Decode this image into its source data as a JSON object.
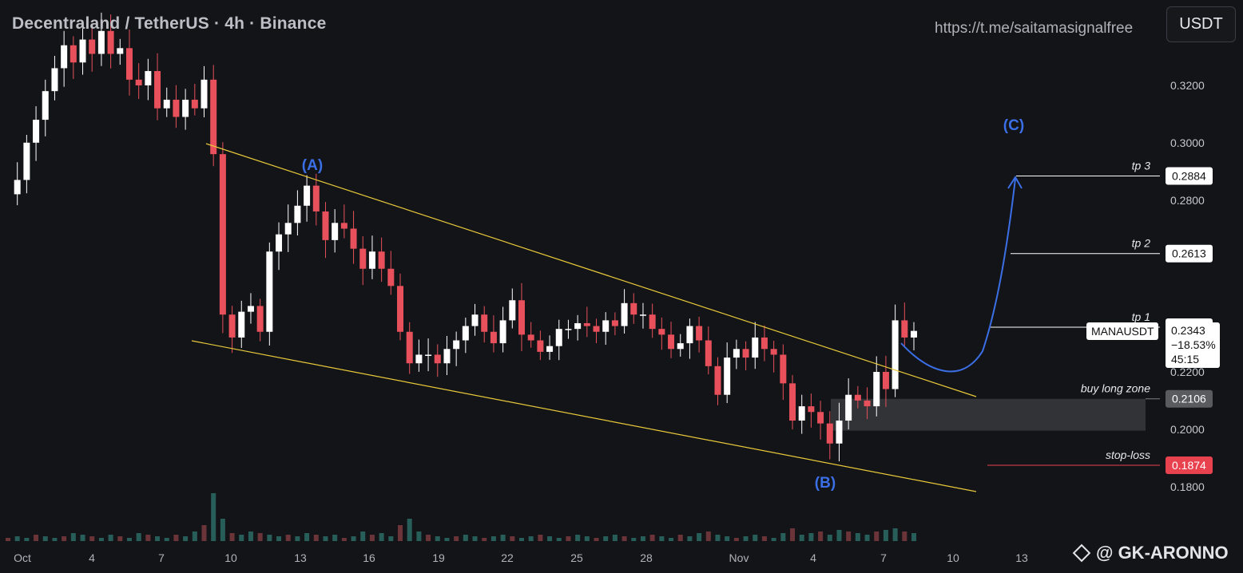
{
  "header": {
    "title": "Decentraland / TetherUS · 4h · Binance",
    "link": "https://t.me/saitamasignalfree",
    "currency_button": "USDT"
  },
  "watermark": {
    "icon": "binance-diamond-icon",
    "text": "@ GK-ARONNO"
  },
  "colors": {
    "background": "#131418",
    "up_candle": "#ffffff",
    "down_candle": "#e8505b",
    "trendline": "#e8c93a",
    "wave_label": "#3b6fe6",
    "stop_loss": "#e8424f",
    "buy_zone": "#3a3b3e"
  },
  "chart_data": {
    "type": "candlestick",
    "symbol": "MANAUSDT",
    "interval": "4h",
    "exchange": "Binance",
    "y_ticks": [
      "0.3200",
      "0.3000",
      "0.2800",
      "0.2200",
      "0.2000",
      "0.1800"
    ],
    "x_ticks": [
      "Oct",
      "4",
      "7",
      "10",
      "13",
      "16",
      "19",
      "22",
      "25",
      "28",
      "Nov",
      "4",
      "7",
      "10",
      "13"
    ],
    "last_price": {
      "symbol": "MANAUSDT",
      "price": "0.2343",
      "change": "−18.53%",
      "countdown": "45:15"
    },
    "levels": [
      {
        "name": "tp 3",
        "price": "0.2884"
      },
      {
        "name": "tp 2",
        "price": "0.2613"
      },
      {
        "name": "tp 1",
        "price": "0.2356"
      },
      {
        "name": "buy long zone",
        "price": "0.2106"
      },
      {
        "name": "stop-loss",
        "price": "0.1874"
      }
    ],
    "wave_labels": [
      "(A)",
      "(B)",
      "(C)"
    ],
    "buy_zone_range": [
      0.1995,
      0.2106
    ],
    "price_path": [
      0.282,
      0.287,
      0.3,
      0.308,
      0.318,
      0.326,
      0.334,
      0.328,
      0.336,
      0.331,
      0.339,
      0.331,
      0.333,
      0.322,
      0.32,
      0.325,
      0.312,
      0.315,
      0.309,
      0.315,
      0.312,
      0.322,
      0.296,
      0.24,
      0.232,
      0.241,
      0.243,
      0.234,
      0.262,
      0.268,
      0.272,
      0.278,
      0.285,
      0.276,
      0.266,
      0.272,
      0.27,
      0.263,
      0.256,
      0.262,
      0.256,
      0.25,
      0.234,
      0.223,
      0.226,
      0.226,
      0.223,
      0.228,
      0.231,
      0.236,
      0.24,
      0.234,
      0.23,
      0.238,
      0.245,
      0.233,
      0.231,
      0.227,
      0.229,
      0.235,
      0.235,
      0.237,
      0.236,
      0.234,
      0.238,
      0.236,
      0.244,
      0.24,
      0.24,
      0.235,
      0.233,
      0.228,
      0.23,
      0.236,
      0.231,
      0.222,
      0.212,
      0.225,
      0.228,
      0.225,
      0.232,
      0.228,
      0.226,
      0.216,
      0.203,
      0.208,
      0.206,
      0.202,
      0.195,
      0.203,
      0.212,
      0.21,
      0.208,
      0.22,
      0.214,
      0.238,
      0.232,
      0.2343
    ],
    "volume_path": [
      2,
      3,
      2,
      4,
      3,
      2,
      3,
      5,
      4,
      3,
      2,
      4,
      3,
      2,
      5,
      4,
      3,
      2,
      4,
      3,
      6,
      10,
      30,
      14,
      5,
      4,
      6,
      5,
      4,
      3,
      4,
      3,
      5,
      4,
      3,
      4,
      2,
      3,
      6,
      4,
      5,
      3,
      10,
      14,
      6,
      4,
      3,
      2,
      3,
      4,
      3,
      2,
      3,
      4,
      3,
      2,
      3,
      4,
      3,
      2,
      3,
      4,
      3,
      2,
      3,
      4,
      3,
      2,
      3,
      4,
      3,
      2,
      4,
      3,
      5,
      6,
      4,
      3,
      2,
      3,
      4,
      3,
      2,
      5,
      8,
      4,
      5,
      6,
      4,
      7,
      6,
      5,
      4,
      6,
      7,
      8,
      6,
      5
    ]
  }
}
